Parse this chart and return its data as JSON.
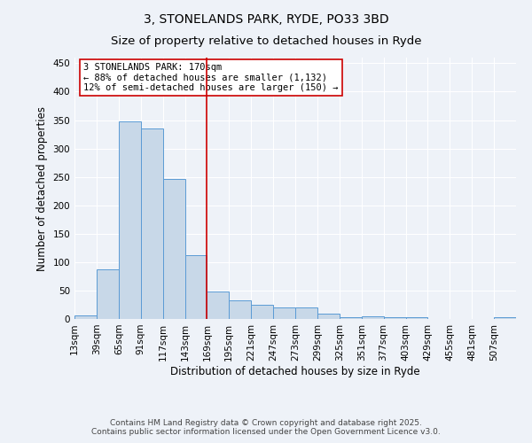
{
  "title_line1": "3, STONELANDS PARK, RYDE, PO33 3BD",
  "title_line2": "Size of property relative to detached houses in Ryde",
  "xlabel": "Distribution of detached houses by size in Ryde",
  "ylabel": "Number of detached properties",
  "bar_edges": [
    13,
    39,
    65,
    91,
    117,
    143,
    169,
    195,
    221,
    247,
    273,
    299,
    325,
    351,
    377,
    403,
    429,
    455,
    481,
    507,
    533
  ],
  "bar_heights": [
    6,
    88,
    348,
    335,
    246,
    112,
    49,
    32,
    25,
    21,
    21,
    9,
    3,
    5,
    3,
    3,
    0,
    0,
    0,
    3
  ],
  "bar_color": "#c8d8e8",
  "bar_edgecolor": "#5b9bd5",
  "vline_x": 169,
  "vline_color": "#cc0000",
  "ylim": [
    0,
    460
  ],
  "yticks": [
    0,
    50,
    100,
    150,
    200,
    250,
    300,
    350,
    400,
    450
  ],
  "annotation_text": "3 STONELANDS PARK: 170sqm\n← 88% of detached houses are smaller (1,132)\n12% of semi-detached houses are larger (150) →",
  "annotation_box_color": "#ffffff",
  "annotation_box_edgecolor": "#cc0000",
  "footer_line1": "Contains HM Land Registry data © Crown copyright and database right 2025.",
  "footer_line2": "Contains public sector information licensed under the Open Government Licence v3.0.",
  "background_color": "#eef2f8",
  "grid_color": "#ffffff",
  "title_fontsize": 10,
  "axis_label_fontsize": 8.5,
  "tick_fontsize": 7.5,
  "annotation_fontsize": 7.5,
  "footer_fontsize": 6.5
}
